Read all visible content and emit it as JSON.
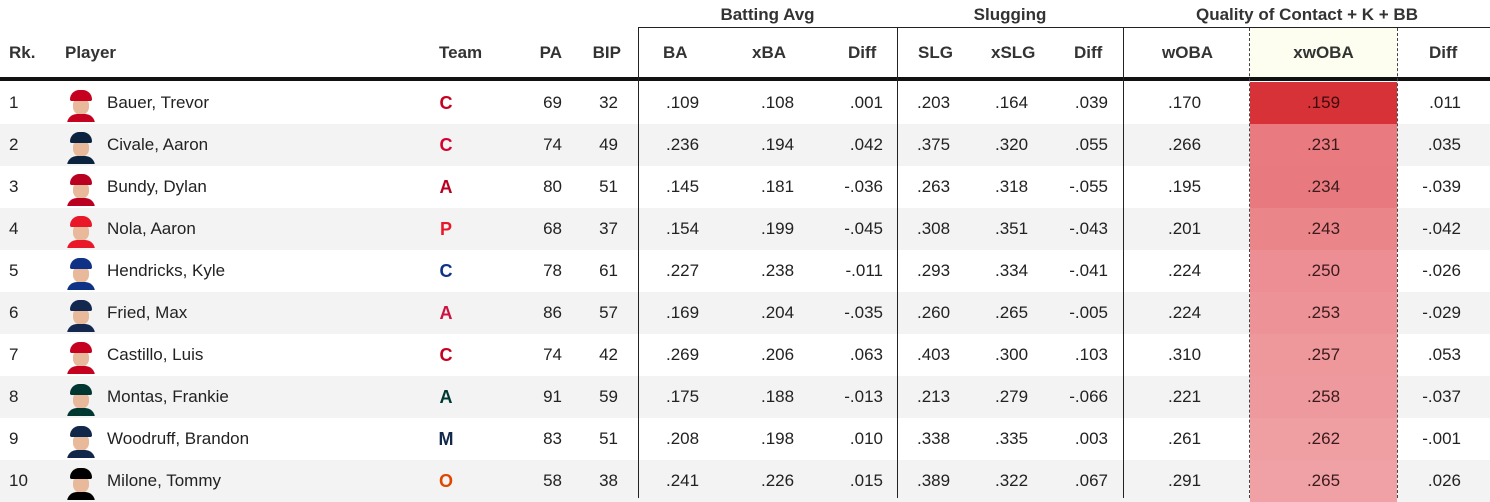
{
  "groups": {
    "batting": "Batting Avg",
    "slugging": "Slugging",
    "quality": "Quality of Contact + K + BB"
  },
  "headers": {
    "rk": "Rk.",
    "player": "Player",
    "team": "Team",
    "pa": "PA",
    "bip": "BIP",
    "ba": "BA",
    "xba": "xBA",
    "diff1": "Diff",
    "slg": "SLG",
    "xslg": "xSLG",
    "diff2": "Diff",
    "woba": "wOBA",
    "xwoba": "xwOBA",
    "diff3": "Diff"
  },
  "colors": {
    "xwoba_shades": [
      "#d73237",
      "#e87a80",
      "#e8797f",
      "#ea858a",
      "#ec8e93",
      "#ed9297",
      "#ee989c",
      "#ee999d",
      "#ef9ea2",
      "#f0a1a5"
    ]
  },
  "rows": [
    {
      "rk": "1",
      "player": "Bauer, Trevor",
      "team_icon": "reds-logo",
      "pa": "69",
      "bip": "32",
      "ba": ".109",
      "xba": ".108",
      "diff1": ".001",
      "slg": ".203",
      "xslg": ".164",
      "diff2": ".039",
      "woba": ".170",
      "xwoba": ".159",
      "diff3": ".011"
    },
    {
      "rk": "2",
      "player": "Civale, Aaron",
      "team_icon": "guardians-logo",
      "pa": "74",
      "bip": "49",
      "ba": ".236",
      "xba": ".194",
      "diff1": ".042",
      "slg": ".375",
      "xslg": ".320",
      "diff2": ".055",
      "woba": ".266",
      "xwoba": ".231",
      "diff3": ".035"
    },
    {
      "rk": "3",
      "player": "Bundy, Dylan",
      "team_icon": "angels-logo",
      "pa": "80",
      "bip": "51",
      "ba": ".145",
      "xba": ".181",
      "diff1": "-.036",
      "slg": ".263",
      "xslg": ".318",
      "diff2": "-.055",
      "woba": ".195",
      "xwoba": ".234",
      "diff3": "-.039"
    },
    {
      "rk": "4",
      "player": "Nola, Aaron",
      "team_icon": "phillies-logo",
      "pa": "68",
      "bip": "37",
      "ba": ".154",
      "xba": ".199",
      "diff1": "-.045",
      "slg": ".308",
      "xslg": ".351",
      "diff2": "-.043",
      "woba": ".201",
      "xwoba": ".243",
      "diff3": "-.042"
    },
    {
      "rk": "5",
      "player": "Hendricks, Kyle",
      "team_icon": "cubs-logo",
      "pa": "78",
      "bip": "61",
      "ba": ".227",
      "xba": ".238",
      "diff1": "-.011",
      "slg": ".293",
      "xslg": ".334",
      "diff2": "-.041",
      "woba": ".224",
      "xwoba": ".250",
      "diff3": "-.026"
    },
    {
      "rk": "6",
      "player": "Fried, Max",
      "team_icon": "braves-logo",
      "pa": "86",
      "bip": "57",
      "ba": ".169",
      "xba": ".204",
      "diff1": "-.035",
      "slg": ".260",
      "xslg": ".265",
      "diff2": "-.005",
      "woba": ".224",
      "xwoba": ".253",
      "diff3": "-.029"
    },
    {
      "rk": "7",
      "player": "Castillo, Luis",
      "team_icon": "reds-logo",
      "pa": "74",
      "bip": "42",
      "ba": ".269",
      "xba": ".206",
      "diff1": ".063",
      "slg": ".403",
      "xslg": ".300",
      "diff2": ".103",
      "woba": ".310",
      "xwoba": ".257",
      "diff3": ".053"
    },
    {
      "rk": "8",
      "player": "Montas, Frankie",
      "team_icon": "athletics-logo",
      "pa": "91",
      "bip": "59",
      "ba": ".175",
      "xba": ".188",
      "diff1": "-.013",
      "slg": ".213",
      "xslg": ".279",
      "diff2": "-.066",
      "woba": ".221",
      "xwoba": ".258",
      "diff3": "-.037"
    },
    {
      "rk": "9",
      "player": "Woodruff, Brandon",
      "team_icon": "brewers-logo",
      "pa": "83",
      "bip": "51",
      "ba": ".208",
      "xba": ".198",
      "diff1": ".010",
      "slg": ".338",
      "xslg": ".335",
      "diff2": ".003",
      "woba": ".261",
      "xwoba": ".262",
      "diff3": "-.001"
    },
    {
      "rk": "10",
      "player": "Milone, Tommy",
      "team_icon": "orioles-logo",
      "pa": "58",
      "bip": "38",
      "ba": ".241",
      "xba": ".226",
      "diff1": ".015",
      "slg": ".389",
      "xslg": ".322",
      "diff2": ".067",
      "woba": ".291",
      "xwoba": ".265",
      "diff3": ".026"
    }
  ]
}
